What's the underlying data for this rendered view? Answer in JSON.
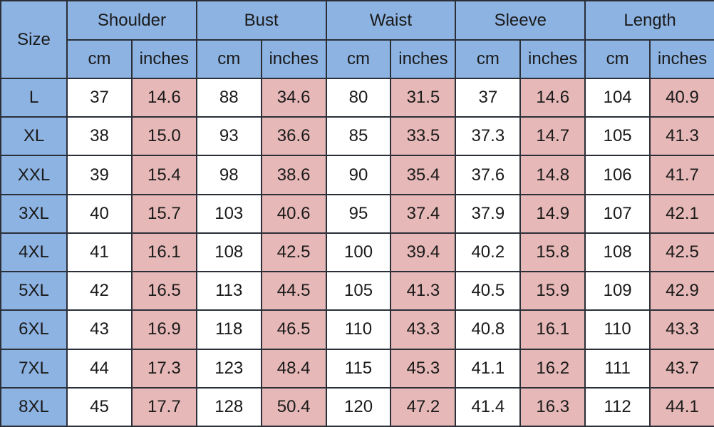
{
  "header": {
    "size_label": "Size",
    "groups": [
      "Shoulder",
      "Bust",
      "Waist",
      "Sleeve",
      "Length"
    ],
    "unit_cm": "cm",
    "unit_inches": "inches"
  },
  "colors": {
    "header": "#8db3e2",
    "inches": "#e6b8b7",
    "cm": "#ffffff"
  },
  "rows": [
    [
      "L",
      "37",
      "14.6",
      "88",
      "34.6",
      "80",
      "31.5",
      "37",
      "14.6",
      "104",
      "40.9"
    ],
    [
      "XL",
      "38",
      "15.0",
      "93",
      "36.6",
      "85",
      "33.5",
      "37.3",
      "14.7",
      "105",
      "41.3"
    ],
    [
      "XXL",
      "39",
      "15.4",
      "98",
      "38.6",
      "90",
      "35.4",
      "37.6",
      "14.8",
      "106",
      "41.7"
    ],
    [
      "3XL",
      "40",
      "15.7",
      "103",
      "40.6",
      "95",
      "37.4",
      "37.9",
      "14.9",
      "107",
      "42.1"
    ],
    [
      "4XL",
      "41",
      "16.1",
      "108",
      "42.5",
      "100",
      "39.4",
      "40.2",
      "15.8",
      "108",
      "42.5"
    ],
    [
      "5XL",
      "42",
      "16.5",
      "113",
      "44.5",
      "105",
      "41.3",
      "40.5",
      "15.9",
      "109",
      "42.9"
    ],
    [
      "6XL",
      "43",
      "16.9",
      "118",
      "46.5",
      "110",
      "43.3",
      "40.8",
      "16.1",
      "110",
      "43.3"
    ],
    [
      "7XL",
      "44",
      "17.3",
      "123",
      "48.4",
      "115",
      "45.3",
      "41.1",
      "16.2",
      "111",
      "43.7"
    ],
    [
      "8XL",
      "45",
      "17.7",
      "128",
      "50.4",
      "120",
      "47.2",
      "41.4",
      "16.3",
      "112",
      "44.1"
    ]
  ]
}
